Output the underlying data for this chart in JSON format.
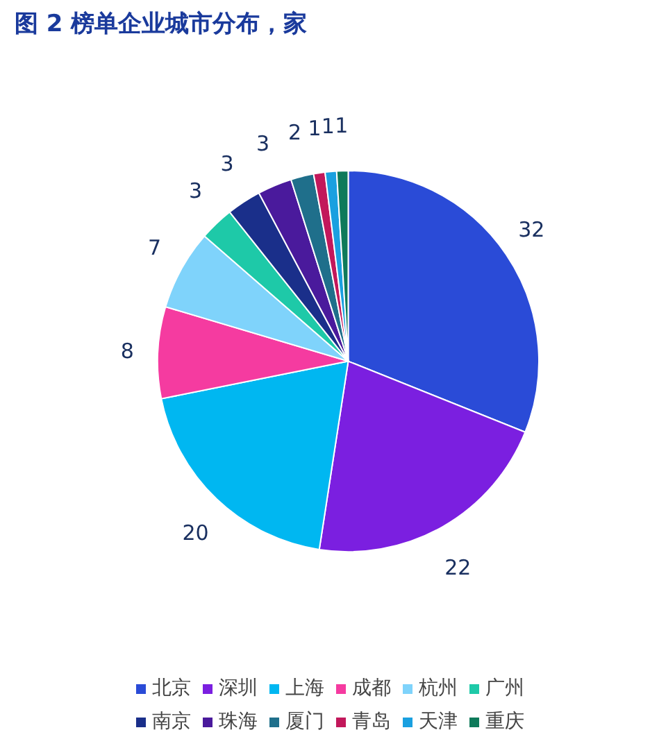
{
  "chart_data": {
    "type": "pie",
    "title": "图 2 榜单企业城市分布，家",
    "categories": [
      "北京",
      "深圳",
      "上海",
      "成都",
      "杭州",
      "广州",
      "南京",
      "珠海",
      "厦门",
      "青岛",
      "天津",
      "重庆"
    ],
    "values": [
      32,
      22,
      20,
      8,
      7,
      3,
      3,
      3,
      2,
      1,
      1,
      1
    ],
    "colors": [
      "#2a4bd7",
      "#7b1fe0",
      "#00b7f1",
      "#f53ba0",
      "#7fd3fb",
      "#1ec9a8",
      "#1a2f8a",
      "#4a1a9c",
      "#1f6f8b",
      "#c2185b",
      "#1aa0e0",
      "#0e7a5a"
    ],
    "data_labels": true,
    "legend": "bottom"
  }
}
